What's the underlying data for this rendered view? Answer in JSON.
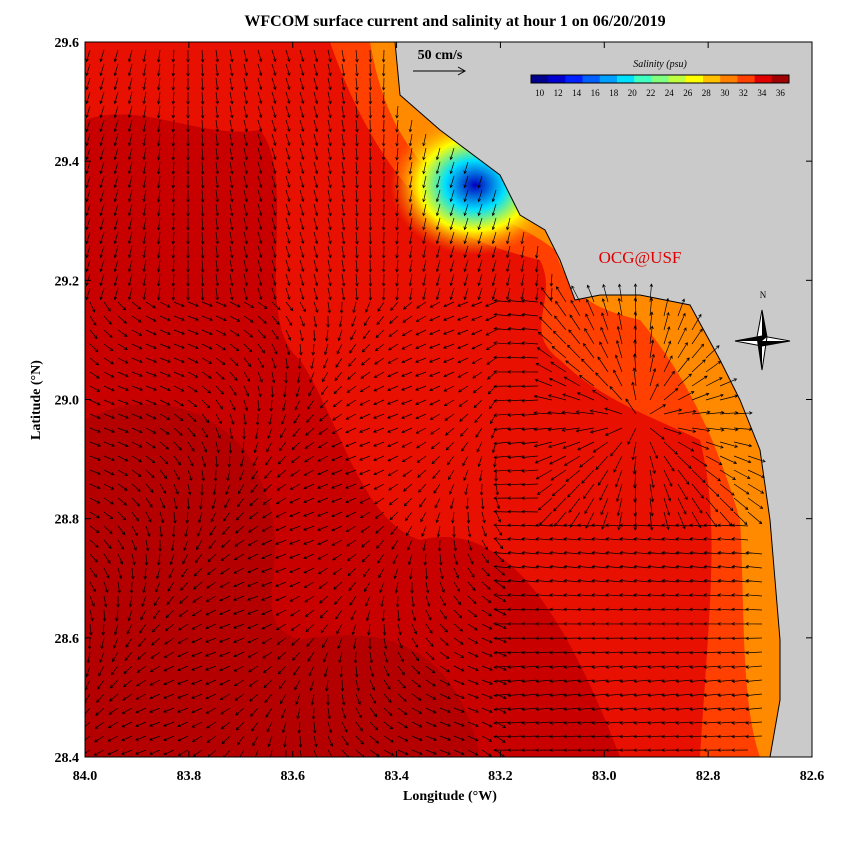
{
  "chart_data": {
    "type": "map",
    "title": "WFCOM surface current and salinity at hour 1 on 06/20/2019",
    "x_label": "Longitude (°W)",
    "y_label": "Latitude (°N)",
    "xlim": [
      84,
      82.6
    ],
    "ylim": [
      28.4,
      29.6
    ],
    "xticks": [
      {
        "value": 84,
        "label": "84.0"
      },
      83.8,
      83.6,
      83.4,
      83.2,
      {
        "value": 83,
        "label": "83.0"
      },
      82.8,
      82.6
    ],
    "yticks": [
      28.4,
      28.6,
      28.8,
      {
        "value": 29,
        "label": "29.0"
      },
      29.2,
      29.4,
      29.6
    ],
    "scale_label": "50 cm/s",
    "credit": "OCG@USF",
    "compass_label": "N",
    "colorbar": {
      "title": "Salinity (psu)",
      "ticks": [
        10,
        12,
        14,
        16,
        18,
        20,
        22,
        24,
        26,
        28,
        30,
        32,
        34,
        36
      ],
      "colors": [
        "#00008f",
        "#0000d0",
        "#0020ff",
        "#0060ff",
        "#00a0ff",
        "#00e0ff",
        "#40ffc0",
        "#80ff80",
        "#c0ff40",
        "#ffff00",
        "#ffc000",
        "#ff8000",
        "#ff4000",
        "#e00000",
        "#a00000"
      ]
    }
  }
}
